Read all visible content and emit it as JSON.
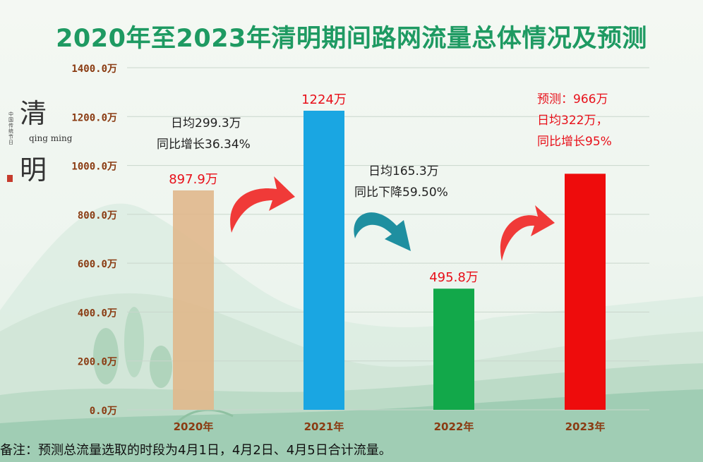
{
  "title": "2020年至2023年清明期间路网流量总体情况及预测",
  "logo": {
    "char1": "清",
    "char2": "明",
    "pinyin": "qing ming",
    "vertical_text": "中国传统节日"
  },
  "colors": {
    "title": "#1e9a62",
    "axis_label": "#8a3b12",
    "bar_2020": "#e0b88c",
    "bar_2021": "#1aa6e2",
    "bar_2022": "#12a84a",
    "bar_2023": "#ee0c0c",
    "arrow_red": "#f03a38",
    "arrow_teal": "#1f8fa0",
    "value_label": "#e8101a"
  },
  "chart_data": {
    "type": "bar",
    "categories": [
      "2020年",
      "2021年",
      "2022年",
      "2023年"
    ],
    "values": [
      897.9,
      1224,
      495.8,
      966
    ],
    "value_labels": [
      "897.9万",
      "1224万",
      "495.8万",
      ""
    ],
    "ylim": [
      0,
      1400
    ],
    "yticks": [
      0,
      200,
      400,
      600,
      800,
      1000,
      1200,
      1400
    ],
    "ytick_labels": [
      "0.0万",
      "200.0万",
      "400.0万",
      "600.0万",
      "800.0万",
      "1000.0万",
      "1200.0万",
      "1400.0万"
    ],
    "grid": true,
    "legend": "none",
    "xlabel": "",
    "ylabel": "",
    "annotations": [
      {
        "lines": [
          "日均299.3万",
          "同比增长36.34%"
        ]
      },
      {
        "lines": [
          "日均165.3万",
          "同比下降59.50%"
        ]
      },
      {
        "lines": [
          "预测：966万",
          "日均322万，",
          "同比增长95%"
        ]
      }
    ]
  },
  "footnote": "备注：预测总流量选取的时段为4月1日，4月2日、4月5日合计流量。"
}
